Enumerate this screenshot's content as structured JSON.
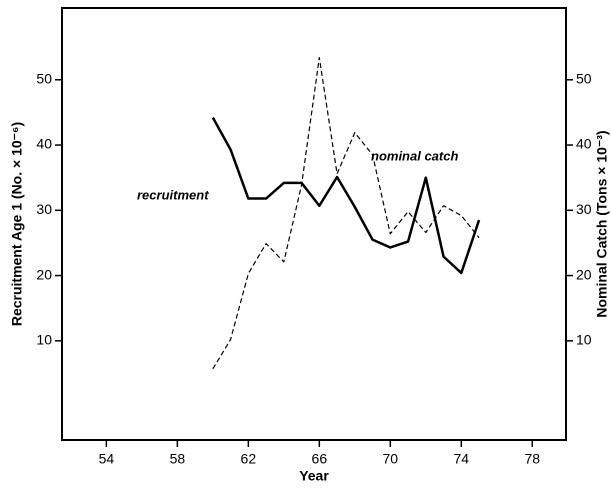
{
  "chart_data": {
    "type": "line",
    "x_label": "Year",
    "y_label": "Recruitment Age 1 (No. × 10⁻⁶)",
    "y2_label": "Nominal Catch (Tons × 10⁻³)",
    "annotations": [
      "recruitment",
      "nominal catch"
    ],
    "x": [
      60,
      61,
      62,
      63,
      64,
      65,
      66,
      67,
      68,
      69,
      70,
      71,
      72,
      73,
      74,
      75
    ],
    "series": [
      {
        "name": "recruitment",
        "color": "#000000",
        "dash": false,
        "values": [
          44.2,
          39.3,
          31.8,
          31.8,
          34.2,
          34.2,
          30.7,
          35.1,
          30.5,
          25.5,
          24.3,
          25.2,
          35,
          22.9,
          20.4,
          28.5
        ]
      },
      {
        "name": "nominal catch",
        "color": "#000000",
        "dash": true,
        "axis": "y2",
        "values": [
          5.7,
          10.2,
          20.3,
          24.9,
          22.1,
          33.9,
          53.4,
          35.6,
          41.9,
          38.5,
          26.4,
          29.8,
          26.6,
          30.7,
          29.2,
          25.8
        ]
      }
    ],
    "xlim": [
      51.5,
      79.9
    ],
    "xticks": [
      54,
      58,
      62,
      66,
      70,
      74,
      78
    ],
    "ylim": [
      -5.2,
      61
    ],
    "yticks": [
      10,
      20,
      30,
      40,
      50
    ],
    "y2lim": [
      -5.2,
      61
    ],
    "y2ticks": [
      10,
      20,
      30,
      40,
      50
    ]
  }
}
